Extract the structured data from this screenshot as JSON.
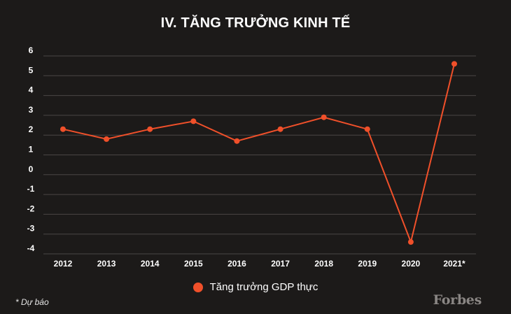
{
  "chart_data": {
    "type": "line",
    "title": "IV. TĂNG TRƯỞNG KINH TẾ",
    "categories": [
      "2012",
      "2013",
      "2014",
      "2015",
      "2016",
      "2017",
      "2018",
      "2019",
      "2020",
      "2021*"
    ],
    "series": [
      {
        "name": "Tăng trưởng GDP thực",
        "values": [
          2.3,
          1.8,
          2.3,
          2.7,
          1.7,
          2.3,
          2.9,
          2.3,
          -3.4,
          5.6
        ],
        "color": "#f0502a"
      }
    ],
    "yticks": [
      "6",
      "5",
      "4",
      "3",
      "2",
      "1",
      "0",
      "-1",
      "-2",
      "-3",
      "-4"
    ],
    "ylim": [
      -4,
      6
    ],
    "grid": true,
    "legend_position": "bottom"
  },
  "legend": {
    "label": "Tăng trưởng GDP thực"
  },
  "footnote": "* Dự báo",
  "brand": "Forbes",
  "colors": {
    "background": "#1c1a19",
    "grid": "#4a4645",
    "accent": "#f0502a"
  }
}
